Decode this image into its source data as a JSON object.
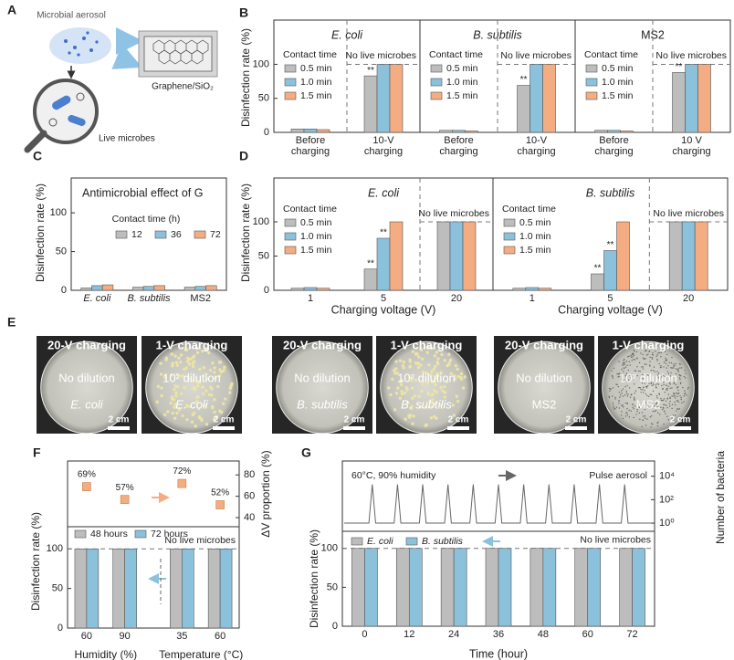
{
  "panel_labels": [
    "A",
    "B",
    "C",
    "D",
    "E",
    "F",
    "G"
  ],
  "diagram": {
    "aerosol_label": "Microbial aerosol",
    "substrate_label": "Graphene/SiO₂",
    "microbes_label": "Live microbes"
  },
  "photos": [
    {
      "charging": "20-V charging",
      "dilution": "No dilution",
      "organism": "E. coli",
      "italic": true,
      "scale": "2 cm"
    },
    {
      "charging": "1-V charging",
      "dilution": "10² dilution",
      "organism": "E. coli",
      "italic": true,
      "scale": "2 cm"
    },
    {
      "charging": "20-V charging",
      "dilution": "No dilution",
      "organism": "B. subtilis",
      "italic": true,
      "scale": "2 cm"
    },
    {
      "charging": "1-V charging",
      "dilution": "10² dilution",
      "organism": "B. subtilis",
      "italic": true,
      "scale": "2 cm"
    },
    {
      "charging": "20-V charging",
      "dilution": "No dilution",
      "organism": "MS2",
      "italic": false,
      "scale": "2 cm"
    },
    {
      "charging": "1-V charging",
      "dilution": "10² dilution",
      "organism": "MS2",
      "italic": false,
      "scale": "2 cm"
    }
  ],
  "chart_data": [
    {
      "type": "bar",
      "title": "E. coli",
      "title_italic": true,
      "ylabel": "Disinfection rate (%)",
      "legend_title": "Contact time",
      "categories": [
        "Before charging",
        "10-V charging"
      ],
      "series": [
        {
          "name": "0.5 min",
          "color": "#bdbdbd",
          "values": [
            5,
            83
          ],
          "significance": [
            null,
            "**"
          ]
        },
        {
          "name": "1.0 min",
          "color": "#8cc1dc",
          "values": [
            5,
            100
          ]
        },
        {
          "name": "1.5 min",
          "color": "#f4ad82",
          "values": [
            4,
            100
          ]
        }
      ],
      "ylim": [
        0,
        165
      ],
      "yticks": [
        0,
        50,
        100
      ],
      "reference_line": 100,
      "reference_label": "No live microbes"
    },
    {
      "type": "bar",
      "title": "B. subtilis",
      "title_italic": true,
      "legend_title": "Contact time",
      "categories": [
        "Before charging",
        "10-V charging"
      ],
      "series": [
        {
          "name": "0.5 min",
          "color": "#bdbdbd",
          "values": [
            3,
            69
          ],
          "significance": [
            null,
            "**"
          ]
        },
        {
          "name": "1.0 min",
          "color": "#8cc1dc",
          "values": [
            3,
            100
          ]
        },
        {
          "name": "1.5 min",
          "color": "#f4ad82",
          "values": [
            2,
            100
          ]
        }
      ],
      "ylim": [
        0,
        165
      ],
      "reference_line": 100,
      "reference_label": "No live microbes"
    },
    {
      "type": "bar",
      "title": "MS2",
      "title_italic": false,
      "legend_title": "Contact time",
      "categories": [
        "Before charging",
        "10 V charging"
      ],
      "series": [
        {
          "name": "0.5 min",
          "color": "#bdbdbd",
          "values": [
            3,
            88
          ],
          "significance": [
            null,
            "**"
          ]
        },
        {
          "name": "1.0 min",
          "color": "#8cc1dc",
          "values": [
            3,
            100
          ]
        },
        {
          "name": "1.5 min",
          "color": "#f4ad82",
          "values": [
            2,
            100
          ]
        }
      ],
      "ylim": [
        0,
        165
      ],
      "reference_line": 100,
      "reference_label": "No live microbes"
    },
    {
      "type": "bar",
      "title": "Antimicrobial effect of G",
      "title_italic": false,
      "ylabel": "Disinfection rate (%)",
      "legend_title": "Contact time (h)",
      "categories": [
        "E. coli",
        "B. subtilis",
        "MS2"
      ],
      "category_italic": [
        true,
        true,
        false
      ],
      "series": [
        {
          "name": "12",
          "color": "#bdbdbd",
          "values": [
            3,
            4,
            4
          ]
        },
        {
          "name": "36",
          "color": "#8cc1dc",
          "values": [
            6,
            5,
            5
          ]
        },
        {
          "name": "72",
          "color": "#f4ad82",
          "values": [
            7,
            6,
            6
          ]
        }
      ],
      "ylim": [
        0,
        145
      ],
      "yticks": [
        0,
        50,
        100
      ]
    },
    {
      "type": "bar",
      "title": "E. coli",
      "title_italic": true,
      "ylabel": "Disinfection rate (%)",
      "xlabel": "Charging voltage (V)",
      "legend_title": "Contact time",
      "categories": [
        "1",
        "5",
        "20"
      ],
      "series": [
        {
          "name": "0.5 min",
          "color": "#bdbdbd",
          "values": [
            3,
            31,
            100
          ],
          "significance": [
            null,
            "**",
            null
          ]
        },
        {
          "name": "1.0 min",
          "color": "#8cc1dc",
          "values": [
            4,
            76,
            100
          ],
          "significance": [
            null,
            "**",
            null
          ]
        },
        {
          "name": "1.5 min",
          "color": "#f4ad82",
          "values": [
            3,
            100,
            100
          ]
        }
      ],
      "ylim": [
        0,
        164
      ],
      "yticks": [
        0,
        50,
        100
      ],
      "reference_line": 100,
      "reference_label": "No live microbes"
    },
    {
      "type": "bar",
      "title": "B. subtilis",
      "title_italic": true,
      "xlabel": "Charging voltage (V)",
      "legend_title": "Contact time",
      "categories": [
        "1",
        "5",
        "20"
      ],
      "series": [
        {
          "name": "0.5 min",
          "color": "#bdbdbd",
          "values": [
            3,
            24,
            100
          ],
          "significance": [
            null,
            "**",
            null
          ]
        },
        {
          "name": "1.0 min",
          "color": "#8cc1dc",
          "values": [
            4,
            58,
            100
          ],
          "significance": [
            null,
            "**",
            null
          ]
        },
        {
          "name": "1.5 min",
          "color": "#f4ad82",
          "values": [
            3,
            100,
            100
          ]
        }
      ],
      "ylim": [
        0,
        164
      ],
      "reference_line": 100,
      "reference_label": "No live microbes"
    },
    {
      "type": "point",
      "ylabel": "ΔV proportion (%)",
      "axis_side": "right",
      "values": [
        69,
        57,
        72,
        52
      ],
      "value_labels": [
        "69%",
        "57%",
        "72%",
        "52%"
      ],
      "color": "#f4ad82",
      "ylim": [
        31.5,
        93
      ],
      "yticks": [
        40,
        60,
        80
      ]
    },
    {
      "type": "bar",
      "ylabel": "Disinfection rate (%)",
      "groups": [
        {
          "label": "Humidity (%)",
          "categories": [
            "60",
            "90"
          ]
        },
        {
          "label": "Temperature (°C)",
          "categories": [
            "35",
            "60"
          ]
        }
      ],
      "series": [
        {
          "name": "48 hours",
          "color": "#bdbdbd",
          "values": [
            100,
            100,
            100,
            100
          ]
        },
        {
          "name": "72 hours",
          "color": "#8cc1dc",
          "values": [
            100,
            100,
            100,
            100
          ]
        }
      ],
      "ylim": [
        0,
        128
      ],
      "yticks": [
        0,
        50,
        100
      ],
      "reference_line": 100,
      "reference_label": "No live microbes"
    },
    {
      "type": "line",
      "ylabel": "Number of bacteria",
      "axis_side": "right",
      "log_scale": true,
      "color": "#666666",
      "annotations": [
        "60°C, 90% humidity",
        "Pulse aerosol"
      ],
      "x": [
        -7,
        -0.4,
        0.5,
        1.4,
        6.35,
        7.25,
        8.15,
        13.1,
        14,
        14.9,
        19.85,
        20.75,
        21.65,
        26.6,
        27.5,
        28.4,
        33.35,
        34.25,
        35.15,
        40.1,
        41,
        41.9,
        46.85,
        47.75,
        48.65,
        53.6,
        54.5,
        55.4,
        60.35,
        61.25,
        62.15,
        67.1,
        68,
        68.9,
        75
      ],
      "values": [
        1,
        1,
        2000,
        1,
        1,
        2000,
        1,
        1,
        2000,
        1,
        1,
        2000,
        1,
        1,
        2000,
        1,
        1,
        2000,
        1,
        1,
        2000,
        1,
        1,
        2000,
        1,
        1,
        2000,
        1,
        1,
        2000,
        1,
        1,
        2000,
        1,
        1
      ],
      "xlim": [
        -7.5,
        76
      ],
      "ylim": [
        0.2,
        200000
      ],
      "yticks": [
        {
          "value": 1,
          "label": "10⁰"
        },
        {
          "value": 100,
          "label": "10²"
        },
        {
          "value": 10000,
          "label": "10⁴"
        }
      ]
    },
    {
      "type": "bar",
      "ylabel": "Disinfection rate (%)",
      "xlabel": "Time (hour)",
      "legend_italic": true,
      "categories": [
        "0",
        "12",
        "24",
        "36",
        "48",
        "60",
        "72"
      ],
      "series": [
        {
          "name": "E. coli",
          "color": "#bdbdbd",
          "values": [
            100,
            100,
            100,
            100,
            100,
            100,
            100
          ]
        },
        {
          "name": "B. subtilis",
          "color": "#8cc1dc",
          "values": [
            100,
            100,
            100,
            100,
            100,
            100,
            100
          ]
        }
      ],
      "ylim": [
        0,
        122
      ],
      "yticks": [
        0,
        50,
        100
      ],
      "reference_line": 100,
      "reference_label": "No live microbes"
    }
  ]
}
